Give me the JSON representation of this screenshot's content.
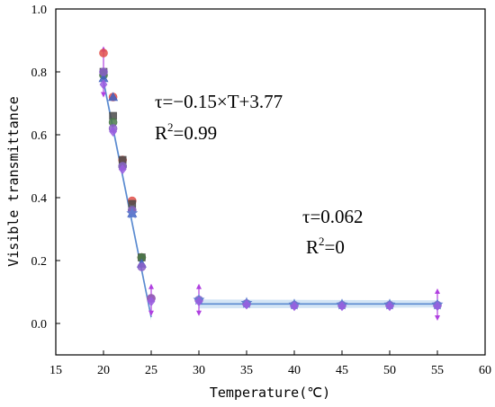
{
  "chart_data": {
    "type": "scatter",
    "xlabel": "Temperature(℃)",
    "ylabel": "Visible transmittance",
    "xlim": [
      15,
      60
    ],
    "ylim": [
      -0.1,
      1.0
    ],
    "x_ticks": [
      "15",
      "20",
      "25",
      "30",
      "35",
      "40",
      "45",
      "50",
      "55",
      "60"
    ],
    "y_ticks": [
      "0.0",
      "0.2",
      "0.4",
      "0.6",
      "0.8",
      "1.0"
    ],
    "grid": false,
    "series": [
      {
        "marker": "circle",
        "color": "#e2504a",
        "x": [
          20,
          21,
          22,
          23,
          24,
          25
        ],
        "y": [
          0.86,
          0.72,
          0.52,
          0.39,
          0.21,
          0.08
        ]
      },
      {
        "marker": "square",
        "color": "#4a4a4a",
        "x": [
          20,
          21,
          22,
          23,
          24
        ],
        "y": [
          0.8,
          0.66,
          0.52,
          0.38,
          0.21
        ]
      },
      {
        "marker": "circle",
        "color": "#4a7a4a",
        "x": [
          20,
          21,
          22,
          23,
          24
        ],
        "y": [
          0.79,
          0.64,
          0.5,
          0.36,
          0.21
        ]
      },
      {
        "marker": "triangle",
        "color": "#3f5fbf",
        "x": [
          20,
          21,
          23,
          24
        ],
        "y": [
          0.78,
          0.72,
          0.35,
          0.19
        ]
      },
      {
        "marker": "circle",
        "color": "#8a5fc8",
        "x": [
          20,
          21,
          22,
          23,
          24,
          25,
          30,
          35,
          40,
          45,
          50,
          55
        ],
        "y": [
          0.8,
          0.62,
          0.5,
          0.36,
          0.18,
          0.08,
          0.075,
          0.063,
          0.058,
          0.058,
          0.058,
          0.058
        ]
      },
      {
        "marker": "star",
        "color": "#5f7fd0",
        "x": [
          23,
          30,
          35,
          40,
          45,
          50,
          55
        ],
        "y": [
          0.35,
          0.075,
          0.065,
          0.06,
          0.06,
          0.06,
          0.06
        ]
      },
      {
        "marker": "diamond",
        "color": "#9a5ee0",
        "x": [
          20,
          21,
          22,
          25,
          30,
          35,
          40,
          45,
          50,
          55
        ],
        "y": [
          0.76,
          0.61,
          0.49,
          0.07,
          0.07,
          0.06,
          0.055,
          0.055,
          0.055,
          0.055
        ]
      }
    ],
    "error_bars": {
      "color": "#b040e0",
      "x": [
        20,
        25,
        30,
        55
      ],
      "y": [
        0.8,
        0.075,
        0.075,
        0.06
      ],
      "err": [
        0.07,
        0.04,
        0.04,
        0.04
      ]
    },
    "fit_lines": [
      {
        "x": [
          20,
          25
        ],
        "y": [
          0.77,
          0.02
        ],
        "color": "#5a8ad0",
        "band": "#a8c8ea"
      },
      {
        "x": [
          30,
          55
        ],
        "y": [
          0.062,
          0.062
        ],
        "color": "#5a8ad0",
        "band": "#c6dcf2"
      }
    ],
    "annotations": [
      {
        "line1": "τ=−0.15×T+3.77",
        "r2_prefix": "R",
        "r2_sup": "2",
        "r2_suffix": "=0.99"
      },
      {
        "line1": "τ=0.062",
        "r2_prefix": "R",
        "r2_sup": "2",
        "r2_suffix": "=0"
      }
    ]
  }
}
